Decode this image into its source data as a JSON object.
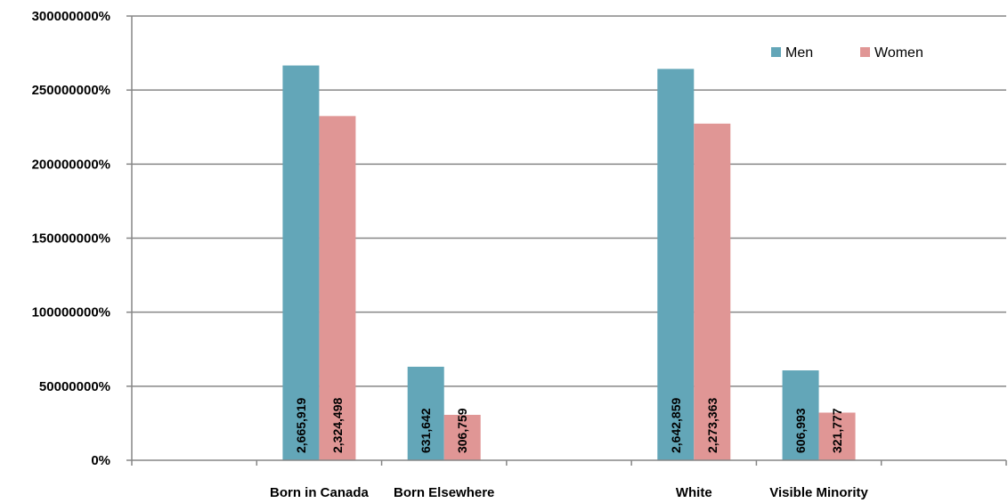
{
  "chart_data": {
    "type": "bar",
    "title": "",
    "xlabel": "",
    "ylabel": "",
    "ylim": [
      0,
      3000000
    ],
    "y_tick_values": [
      0,
      500000,
      1000000,
      1500000,
      2000000,
      2500000,
      3000000
    ],
    "y_tick_labels": [
      "0%",
      "50000000%",
      "100000000%",
      "150000000%",
      "200000000%",
      "250000000%",
      "300000000%"
    ],
    "categories": [
      "",
      "Born in Canada",
      "Born Elsewhere",
      "",
      "White",
      "Visible Minority",
      ""
    ],
    "series": [
      {
        "name": "Men",
        "color": "#63A6B8",
        "values": [
          null,
          2665919,
          631642,
          null,
          2642859,
          606993,
          null
        ],
        "data_labels": [
          "",
          "2,665,919",
          "631,642",
          "",
          "2,642,859",
          "606,993",
          ""
        ]
      },
      {
        "name": "Women",
        "color": "#E09695",
        "values": [
          null,
          2324498,
          306759,
          null,
          2273363,
          321777,
          null
        ],
        "data_labels": [
          "",
          "2,324,498",
          "306,759",
          "",
          "2,273,363",
          "321,777",
          ""
        ]
      }
    ],
    "legend_position": "top-right",
    "grid": true
  }
}
